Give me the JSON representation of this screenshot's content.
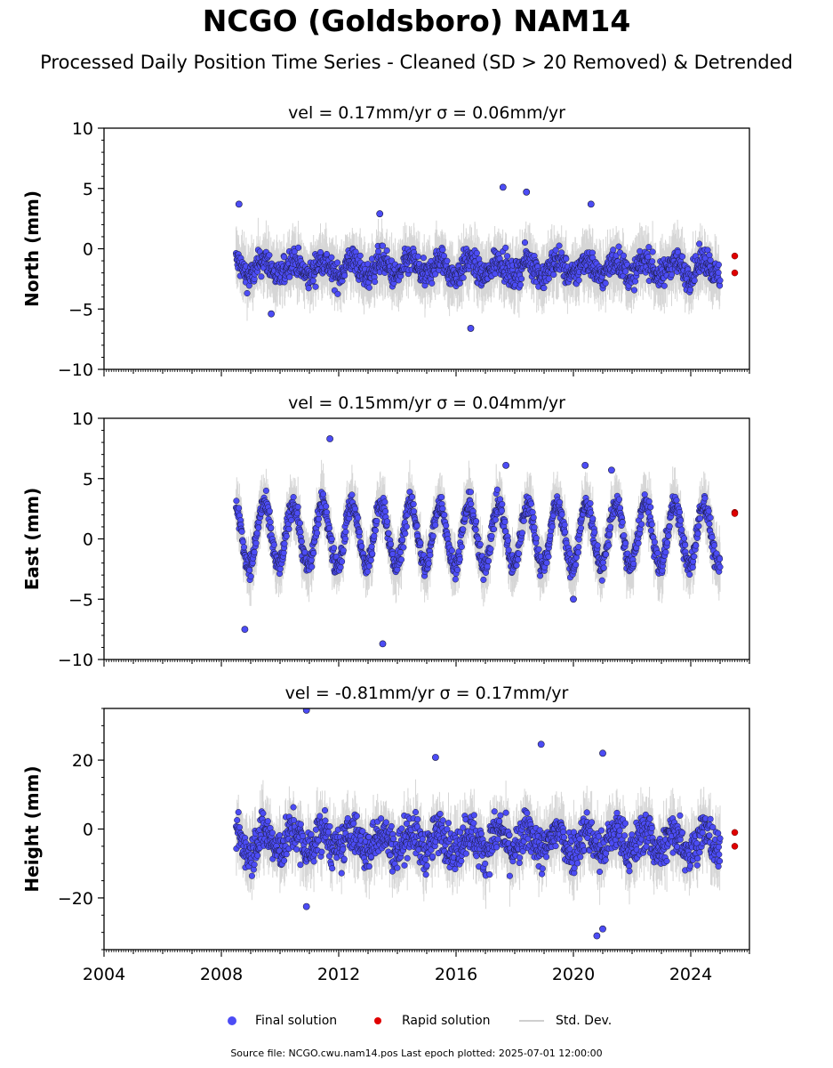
{
  "title": "NCGO (Goldsboro) NAM14",
  "subtitle": "Processed Daily Position Time Series - Cleaned (SD > 20 Removed) & Detrended",
  "footer": "Source file: NCGO.cwu.nam14.pos  Last epoch plotted: 2025-07-01 12:00:00",
  "legend": {
    "final": "Final solution",
    "rapid": "Rapid solution",
    "std": "Std. Dev."
  },
  "colors": {
    "final": "#4c4cf5",
    "rapid": "#e00000",
    "std": "#b4b4b4"
  },
  "chart_data": [
    {
      "type": "scatter",
      "title": "vel = 0.17mm/yr   σ = 0.06mm/yr",
      "ylabel": "North (mm)",
      "xlim": [
        2004,
        2026
      ],
      "ylim": [
        -10,
        10
      ],
      "yticks": [
        -10,
        -5,
        0,
        5,
        10
      ],
      "ytick_labels": [
        "−10",
        "−5",
        "0",
        "5",
        "10"
      ],
      "x_range_of_data": [
        2008.5,
        2025.0
      ],
      "final_points": [
        [
          2008.6,
          3.7
        ],
        [
          2009.7,
          -5.4
        ],
        [
          2013.4,
          2.9
        ],
        [
          2016.5,
          -6.6
        ],
        [
          2017.6,
          5.1
        ],
        [
          2018.4,
          4.7
        ],
        [
          2020.6,
          3.7
        ]
      ],
      "rapid_points": [
        [
          2025.5,
          -0.6
        ],
        [
          2025.5,
          -2.0
        ]
      ]
    },
    {
      "type": "scatter",
      "title": "vel = 0.15mm/yr   σ = 0.04mm/yr",
      "ylabel": "East (mm)",
      "xlim": [
        2004,
        2026
      ],
      "ylim": [
        -10,
        10
      ],
      "yticks": [
        -10,
        -5,
        0,
        5,
        10
      ],
      "ytick_labels": [
        "−10",
        "−5",
        "0",
        "5",
        "10"
      ],
      "x_range_of_data": [
        2008.5,
        2025.0
      ],
      "final_points": [
        [
          2008.8,
          -7.5
        ],
        [
          2011.7,
          8.3
        ],
        [
          2013.5,
          -8.7
        ],
        [
          2017.7,
          6.1
        ],
        [
          2020.4,
          6.1
        ],
        [
          2020.0,
          -5.0
        ],
        [
          2021.3,
          5.7
        ]
      ],
      "rapid_points": [
        [
          2025.5,
          2.2
        ],
        [
          2025.5,
          2.1
        ]
      ]
    },
    {
      "type": "scatter",
      "title": "vel = -0.81mm/yr   σ = 0.17mm/yr",
      "ylabel": "Height (mm)",
      "xlim": [
        2004,
        2026
      ],
      "ylim": [
        -35,
        35
      ],
      "yticks": [
        -20,
        0,
        20
      ],
      "ytick_labels": [
        "−20",
        "0",
        "20"
      ],
      "xticks": [
        2004,
        2008,
        2012,
        2016,
        2020,
        2024
      ],
      "xtick_labels": [
        "2004",
        "2008",
        "2012",
        "2016",
        "2020",
        "2024"
      ],
      "x_range_of_data": [
        2008.5,
        2025.0
      ],
      "final_points": [
        [
          2010.9,
          34.5
        ],
        [
          2010.9,
          -22.5
        ],
        [
          2018.9,
          24.6
        ],
        [
          2020.8,
          -31.0
        ],
        [
          2021.0,
          -29.0
        ],
        [
          2021.0,
          22.0
        ],
        [
          2015.3,
          20.8
        ]
      ],
      "rapid_points": [
        [
          2025.5,
          -1.0
        ],
        [
          2025.5,
          -5.0
        ]
      ]
    }
  ]
}
